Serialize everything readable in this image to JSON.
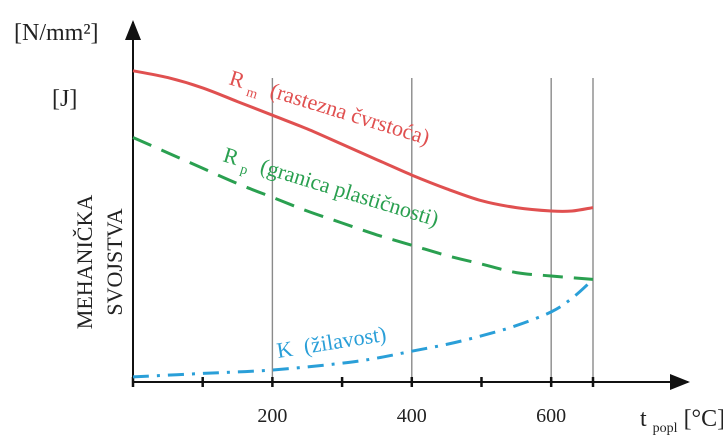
{
  "chart_data": {
    "type": "line",
    "title": "",
    "ylabel_units": [
      "[N/mm²]",
      "[J]"
    ],
    "ylabel": [
      "MEHANIČKA",
      "SVOJSTVA"
    ],
    "xlabel": {
      "main": "t",
      "sub": "popl",
      "unit": "[°C]"
    },
    "xlim": [
      0,
      660
    ],
    "ylim": [
      0,
      100
    ],
    "x_ticks": [
      0,
      100,
      200,
      300,
      400,
      500,
      600,
      660
    ],
    "x_tick_labels": [
      {
        "x": 200,
        "label": "200"
      },
      {
        "x": 400,
        "label": "400"
      },
      {
        "x": 600,
        "label": "600"
      }
    ],
    "vertical_gridlines": [
      200,
      400,
      600,
      660
    ],
    "series": [
      {
        "name_main": "R",
        "name_sub": "m",
        "name_desc": "(rastezna čvrstoća)",
        "color": "#e05050",
        "style": "solid",
        "x": [
          0,
          50,
          100,
          150,
          200,
          250,
          300,
          350,
          400,
          450,
          500,
          550,
          600,
          630,
          660
        ],
        "y": [
          91,
          89,
          86,
          82,
          78,
          74,
          69.5,
          65,
          60.5,
          56.5,
          53,
          51,
          50,
          50,
          51
        ]
      },
      {
        "name_main": "R",
        "name_sub": "p",
        "name_desc": "(granica plastičnosti)",
        "color": "#2aa050",
        "style": "dashed",
        "x": [
          0,
          50,
          100,
          150,
          200,
          250,
          300,
          350,
          400,
          450,
          500,
          550,
          600,
          660
        ],
        "y": [
          71.5,
          67,
          62.5,
          58,
          54,
          50,
          46.5,
          43,
          40,
          37,
          34.5,
          32,
          31,
          30
        ]
      },
      {
        "name_main": "K",
        "name_sub": "",
        "name_desc": "(žilavost)",
        "color": "#2a9fd8",
        "style": "dashdot",
        "x": [
          0,
          100,
          200,
          300,
          350,
          400,
          450,
          500,
          550,
          600,
          630,
          660
        ],
        "y": [
          1.5,
          2.5,
          3.5,
          5.5,
          7,
          9,
          11,
          13.5,
          16.5,
          20.5,
          24.5,
          30
        ]
      }
    ],
    "grid": false,
    "legend": "none (inline labels)"
  }
}
